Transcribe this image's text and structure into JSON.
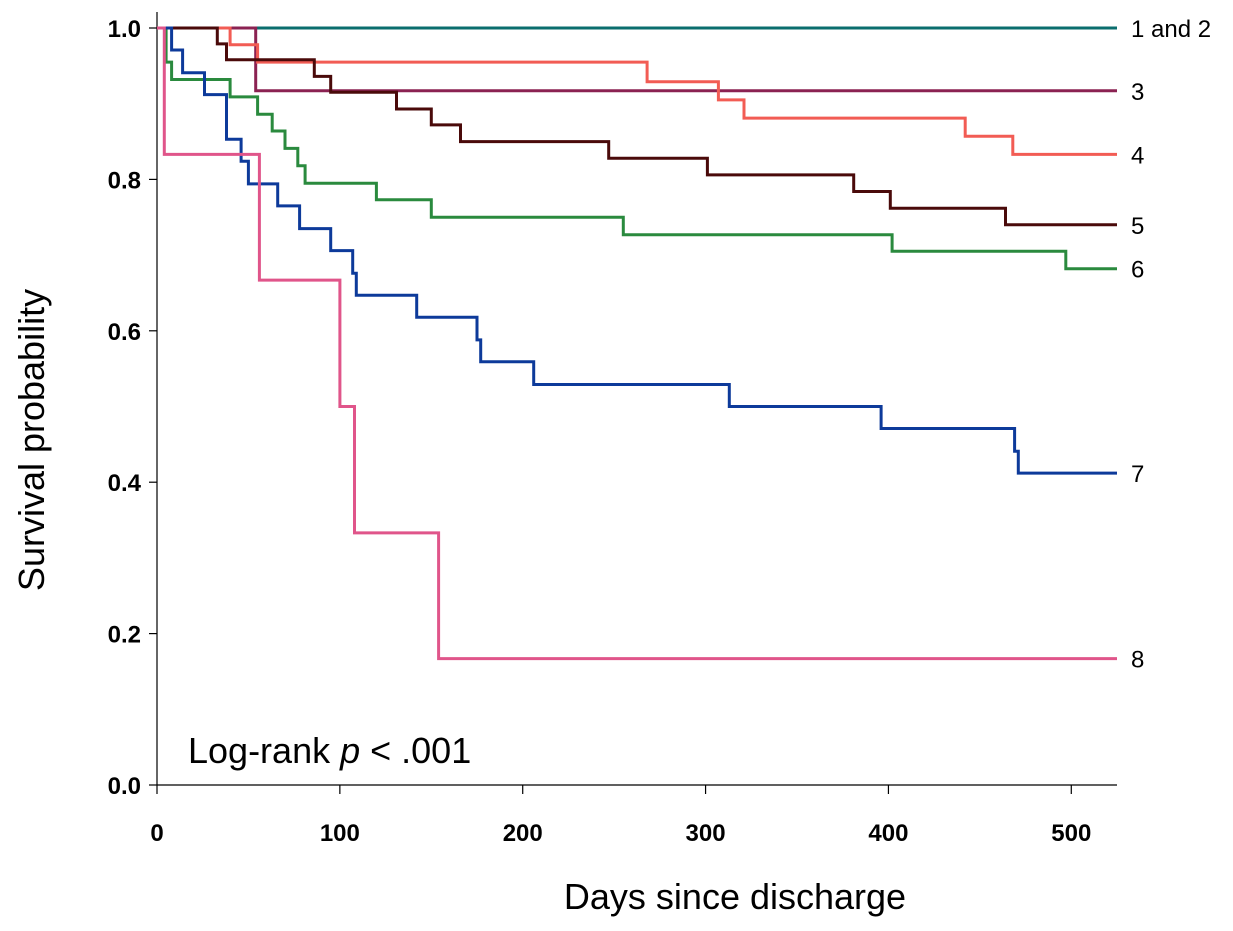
{
  "chart_data": {
    "type": "line",
    "step": true,
    "xlabel": "Days since discharge",
    "ylabel": "Survival probability",
    "xlim": [
      0,
      525
    ],
    "ylim": [
      0,
      1.0
    ],
    "xticks": [
      0,
      100,
      200,
      300,
      400,
      500
    ],
    "yticks": [
      0.0,
      0.2,
      0.4,
      0.6,
      0.8,
      1.0
    ],
    "ytick_labels": [
      "0.0",
      "0.2",
      "0.4",
      "0.6",
      "0.8",
      "1.0"
    ],
    "annotation": {
      "prefix": "Log-rank ",
      "italic": "p",
      "suffix": " < .001"
    },
    "grid": false,
    "legend": "line-end labels",
    "series": [
      {
        "name": "1 and 2",
        "color": "#0b6e6e",
        "points": [
          [
            0,
            1.0
          ],
          [
            525,
            1.0
          ]
        ]
      },
      {
        "name": "3",
        "color": "#8b2252",
        "points": [
          [
            0,
            1.0
          ],
          [
            54,
            1.0
          ],
          [
            54,
            0.917
          ],
          [
            525,
            0.917
          ]
        ]
      },
      {
        "name": "4",
        "color": "#f25c54",
        "points": [
          [
            0,
            1.0
          ],
          [
            40,
            1.0
          ],
          [
            40,
            0.978
          ],
          [
            55,
            0.978
          ],
          [
            55,
            0.955
          ],
          [
            268,
            0.955
          ],
          [
            268,
            0.929
          ],
          [
            307,
            0.929
          ],
          [
            307,
            0.905
          ],
          [
            321,
            0.905
          ],
          [
            321,
            0.881
          ],
          [
            442,
            0.881
          ],
          [
            442,
            0.857
          ],
          [
            468,
            0.857
          ],
          [
            468,
            0.833
          ],
          [
            525,
            0.833
          ]
        ]
      },
      {
        "name": "5",
        "color": "#4a0a0a",
        "points": [
          [
            0,
            1.0
          ],
          [
            33,
            1.0
          ],
          [
            33,
            0.979
          ],
          [
            38,
            0.979
          ],
          [
            38,
            0.958
          ],
          [
            86,
            0.958
          ],
          [
            86,
            0.936
          ],
          [
            95,
            0.936
          ],
          [
            95,
            0.915
          ],
          [
            131,
            0.915
          ],
          [
            131,
            0.893
          ],
          [
            150,
            0.893
          ],
          [
            150,
            0.872
          ],
          [
            166,
            0.872
          ],
          [
            166,
            0.85
          ],
          [
            247,
            0.85
          ],
          [
            247,
            0.828
          ],
          [
            301,
            0.828
          ],
          [
            301,
            0.806
          ],
          [
            381,
            0.806
          ],
          [
            381,
            0.784
          ],
          [
            401,
            0.784
          ],
          [
            401,
            0.762
          ],
          [
            464,
            0.762
          ],
          [
            464,
            0.74
          ],
          [
            525,
            0.74
          ]
        ]
      },
      {
        "name": "6",
        "color": "#2a8a3e",
        "points": [
          [
            0,
            1.0
          ],
          [
            5,
            1.0
          ],
          [
            5,
            0.955
          ],
          [
            8,
            0.955
          ],
          [
            8,
            0.932
          ],
          [
            40,
            0.932
          ],
          [
            40,
            0.909
          ],
          [
            55,
            0.909
          ],
          [
            55,
            0.886
          ],
          [
            63,
            0.886
          ],
          [
            63,
            0.864
          ],
          [
            70,
            0.864
          ],
          [
            70,
            0.841
          ],
          [
            77,
            0.841
          ],
          [
            77,
            0.818
          ],
          [
            81,
            0.818
          ],
          [
            81,
            0.795
          ],
          [
            120,
            0.795
          ],
          [
            120,
            0.773
          ],
          [
            150,
            0.773
          ],
          [
            150,
            0.75
          ],
          [
            255,
            0.75
          ],
          [
            255,
            0.727
          ],
          [
            402,
            0.727
          ],
          [
            402,
            0.705
          ],
          [
            497,
            0.705
          ],
          [
            497,
            0.682
          ],
          [
            525,
            0.682
          ]
        ]
      },
      {
        "name": "7",
        "color": "#0d3a9a",
        "points": [
          [
            0,
            1.0
          ],
          [
            8,
            1.0
          ],
          [
            8,
            0.971
          ],
          [
            14,
            0.971
          ],
          [
            14,
            0.941
          ],
          [
            26,
            0.941
          ],
          [
            26,
            0.912
          ],
          [
            38,
            0.912
          ],
          [
            38,
            0.853
          ],
          [
            46,
            0.853
          ],
          [
            46,
            0.824
          ],
          [
            50,
            0.824
          ],
          [
            50,
            0.794
          ],
          [
            66,
            0.794
          ],
          [
            66,
            0.765
          ],
          [
            78,
            0.765
          ],
          [
            78,
            0.735
          ],
          [
            95,
            0.735
          ],
          [
            95,
            0.706
          ],
          [
            107,
            0.706
          ],
          [
            107,
            0.676
          ],
          [
            109,
            0.676
          ],
          [
            109,
            0.647
          ],
          [
            142,
            0.647
          ],
          [
            142,
            0.618
          ],
          [
            175,
            0.618
          ],
          [
            175,
            0.588
          ],
          [
            177,
            0.588
          ],
          [
            177,
            0.559
          ],
          [
            206,
            0.559
          ],
          [
            206,
            0.529
          ],
          [
            313,
            0.529
          ],
          [
            313,
            0.5
          ],
          [
            396,
            0.5
          ],
          [
            396,
            0.471
          ],
          [
            469,
            0.471
          ],
          [
            469,
            0.441
          ],
          [
            471,
            0.441
          ],
          [
            471,
            0.412
          ],
          [
            525,
            0.412
          ]
        ]
      },
      {
        "name": "8",
        "color": "#e0558a",
        "points": [
          [
            0,
            1.0
          ],
          [
            4,
            1.0
          ],
          [
            4,
            0.833
          ],
          [
            56,
            0.833
          ],
          [
            56,
            0.667
          ],
          [
            100,
            0.667
          ],
          [
            100,
            0.5
          ],
          [
            108,
            0.5
          ],
          [
            108,
            0.333
          ],
          [
            154,
            0.333
          ],
          [
            154,
            0.167
          ],
          [
            525,
            0.167
          ]
        ]
      }
    ]
  }
}
